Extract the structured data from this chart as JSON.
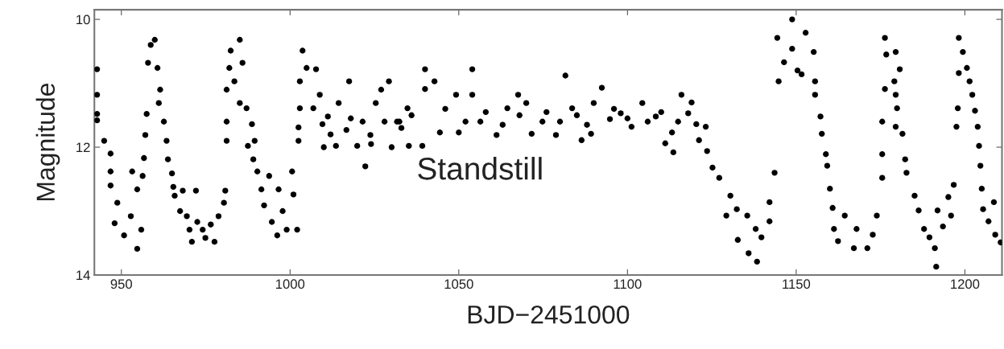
{
  "chart_data": {
    "type": "scatter",
    "xlabel": "BJD−2451000",
    "ylabel": "Magnitude",
    "annotations": [
      "Standstill"
    ],
    "xlim": [
      942,
      1211
    ],
    "ylim": [
      14,
      9.85
    ],
    "xticks": [
      950,
      1000,
      1050,
      1100,
      1150,
      1200
    ],
    "yticks": [
      10,
      12,
      14
    ],
    "grid": false,
    "marker": "circle",
    "series": [
      {
        "color": "#000000",
        "x": [
          942.8,
          942.8,
          942.8,
          942.8,
          944.9,
          946.8,
          946.8,
          946.8,
          948,
          948.8,
          950.8,
          952.8,
          953.2,
          954.7,
          954.7,
          955.9,
          956.3,
          956.7,
          957.1,
          957.5,
          957.9,
          958.7,
          959.9,
          960.7,
          961.1,
          961.5,
          962.6,
          963.4,
          963.8,
          965,
          965.4,
          965.8,
          967.4,
          968.2,
          969.4,
          970.2,
          970.9,
          972.1,
          972.5,
          974.1,
          974.9,
          976.5,
          977.6,
          978.8,
          980.4,
          980.8,
          981.2,
          981.2,
          981.2,
          982,
          982.4,
          983.5,
          985.1,
          985.1,
          985.9,
          987.1,
          987.5,
          988.7,
          989.5,
          989.1,
          990.3,
          991.5,
          992.3,
          993.8,
          994.6,
          996.2,
          996.6,
          997.8,
          999,
          1000.6,
          1001,
          1002.1,
          1002.5,
          1002.5,
          1002.9,
          1002.9,
          1003.7,
          1004.9,
          1007.7,
          1006.9,
          1008.8,
          1009.6,
          1011.2,
          1010,
          1013.6,
          1014.4,
          1017.5,
          1016.7,
          1019.9,
          1022.3,
          1021.5,
          1023.8,
          1025.4,
          1027,
          1029.3,
          1030.1,
          1031.7,
          1034.8,
          1012,
          1018,
          1024,
          1028,
          1033,
          1032.4,
          1035.2,
          1039.2,
          1040,
          1040,
          1042.8,
          1044.4,
          1049.2,
          1050,
          1054,
          1054,
          1056.4,
          1061.2,
          1064.4,
          1067.6,
          1070,
          1071.6,
          1074.8,
          1078.8,
          1081.6,
          1083.6,
          1086.4,
          1089.2,
          1090,
          1092.4,
          1094.8,
          1098,
          1101.2,
          1104.4,
          1108.4,
          1111.2,
          1113.2,
          1113.6,
          1116,
          1118,
          1120.4,
          1121.2,
          1123.2,
          1123.6,
          1125.2,
          1127.2,
          1036,
          1046,
          1052,
          1058,
          1063,
          1068,
          1076,
          1080,
          1085,
          1088,
          1096,
          1100,
          1106,
          1110,
          1115,
          1119,
          1130.5,
          1129.3,
          1132.4,
          1132.7,
          1135.5,
          1135.9,
          1138.4,
          1138,
          1139.7,
          1142.1,
          1142.1,
          1143.6,
          1144.4,
          1144.8,
          1146.4,
          1148.8,
          1148.8,
          1150.4,
          1151.6,
          1152.8,
          1155.2,
          1155.6,
          1155.6,
          1157.2,
          1157.6,
          1158.8,
          1159.2,
          1160,
          1160.8,
          1161.2,
          1162.4,
          1164.4,
          1167.1,
          1167.9,
          1171.1,
          1172.7,
          1173.9,
          1175.5,
          1175.5,
          1175.5,
          1176.3,
          1176.7,
          1176.3,
          1179.5,
          1179.1,
          1180.7,
          1179.5,
          1179.9,
          1179.5,
          1181.5,
          1182.3,
          1182.7,
          1185.1,
          1186.3,
          1187.9,
          1189.5,
          1191.1,
          1191.5,
          1191.9,
          1193.5,
          1195.1,
          1195.9,
          1196.7,
          1197.5,
          1197.9,
          1198.2,
          1198.2,
          1199.4,
          1200.6,
          1201.4,
          1202.2,
          1203,
          1203.8,
          1204.2,
          1204.6,
          1205,
          1205.4,
          1207,
          1208.6,
          1209,
          1210.6
        ],
        "values": [
          10.78,
          11.18,
          11.48,
          11.58,
          11.9,
          12.1,
          12.38,
          12.6,
          13.19,
          12.87,
          13.38,
          13.08,
          12.38,
          13.59,
          12.66,
          13.29,
          12.45,
          12.17,
          11.81,
          11.48,
          10.68,
          10.4,
          10.32,
          10.76,
          11.31,
          11.1,
          11.6,
          11.9,
          12.19,
          12.41,
          12.62,
          12.76,
          13.0,
          12.68,
          13.08,
          13.29,
          13.48,
          12.68,
          13.17,
          13.29,
          13.42,
          13.21,
          13.48,
          13.08,
          12.87,
          12.68,
          11.9,
          11.6,
          11.1,
          10.76,
          10.49,
          10.97,
          10.32,
          11.31,
          10.68,
          11.39,
          11.98,
          11.64,
          11.9,
          12.19,
          12.38,
          12.66,
          12.91,
          12.45,
          13.17,
          13.38,
          12.66,
          13.0,
          13.29,
          12.38,
          12.74,
          13.29,
          11.9,
          11.69,
          11.39,
          10.97,
          10.49,
          10.76,
          10.78,
          11.39,
          11.18,
          11.64,
          11.52,
          12.0,
          11.98,
          11.31,
          10.97,
          11.73,
          11.98,
          12.3,
          11.6,
          11.81,
          11.31,
          11.1,
          10.97,
          12.0,
          11.6,
          11.39,
          11.8,
          11.55,
          11.95,
          11.6,
          11.7,
          11.6,
          11.98,
          11.98,
          10.78,
          11.09,
          10.97,
          11.77,
          11.18,
          11.77,
          10.78,
          11.18,
          11.6,
          11.81,
          11.39,
          11.18,
          11.31,
          11.79,
          11.6,
          11.81,
          10.88,
          11.39,
          11.89,
          11.79,
          11.31,
          11.07,
          11.56,
          11.47,
          11.68,
          11.31,
          11.52,
          11.94,
          11.77,
          12.08,
          11.18,
          11.47,
          11.64,
          11.89,
          11.68,
          12.06,
          12.32,
          12.48,
          11.5,
          11.4,
          11.6,
          11.45,
          11.65,
          11.5,
          11.45,
          11.6,
          11.5,
          11.65,
          11.4,
          11.55,
          11.6,
          11.45,
          11.6,
          11.3,
          12.76,
          13.07,
          12.97,
          13.45,
          13.07,
          13.66,
          13.79,
          13.28,
          13.41,
          13.16,
          12.86,
          12.4,
          10.29,
          10.97,
          10.67,
          10.0,
          10.46,
          10.8,
          10.86,
          10.21,
          10.51,
          10.97,
          11.18,
          11.52,
          11.79,
          12.11,
          12.29,
          12.65,
          12.95,
          13.28,
          13.47,
          13.07,
          13.58,
          13.28,
          13.58,
          13.37,
          13.07,
          12.48,
          12.11,
          11.6,
          10.29,
          10.55,
          11.09,
          10.51,
          10.97,
          10.78,
          11.18,
          11.39,
          11.68,
          11.79,
          12.19,
          12.4,
          12.76,
          12.99,
          13.28,
          13.41,
          13.58,
          13.87,
          12.99,
          13.24,
          12.78,
          13.07,
          12.59,
          11.68,
          11.39,
          10.29,
          10.84,
          10.51,
          10.76,
          10.97,
          11.18,
          11.43,
          11.68,
          11.98,
          12.29,
          12.65,
          12.97,
          13.16,
          12.86,
          13.37,
          13.49
        ]
      }
    ]
  }
}
